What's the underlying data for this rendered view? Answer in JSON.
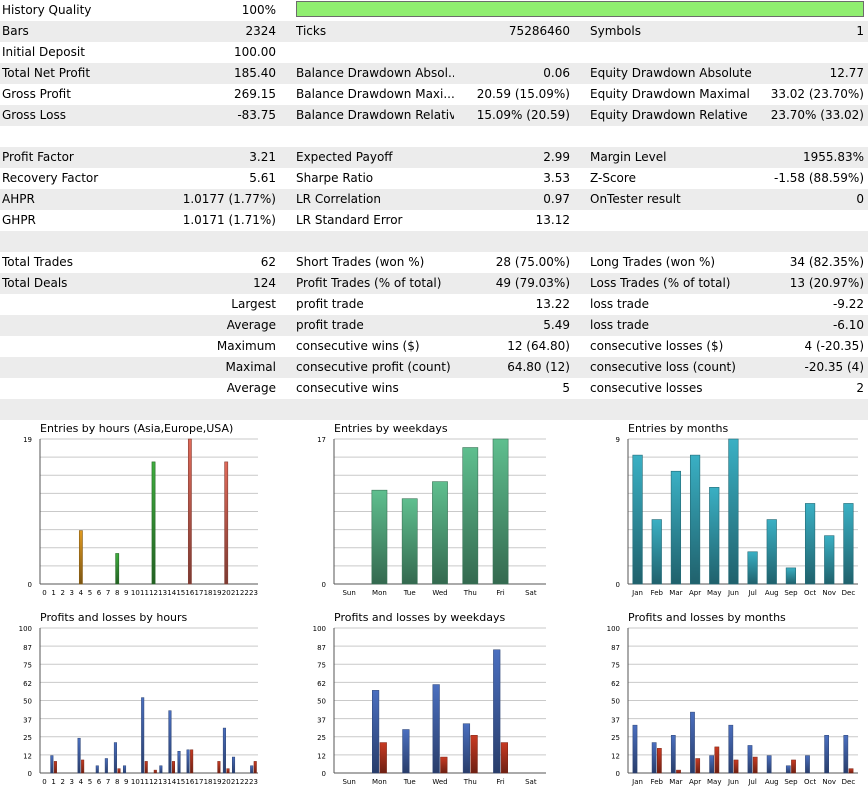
{
  "summary": {
    "history_quality": {
      "label": "History Quality",
      "value": "100%",
      "percent": 100
    },
    "rows": [
      {
        "c1": "Bars",
        "v1": "2324",
        "c2": "Ticks",
        "v2": "75286460",
        "c3": "Symbols",
        "v3": "1"
      },
      {
        "c1": "Initial Deposit",
        "v1": "100.00",
        "c2": "",
        "v2": "",
        "c3": "",
        "v3": ""
      },
      {
        "c1": "Total Net Profit",
        "v1": "185.40",
        "c2": "Balance Drawdown Absol...",
        "v2": "0.06",
        "c3": "Equity Drawdown Absolute",
        "v3": "12.77"
      },
      {
        "c1": "Gross Profit",
        "v1": "269.15",
        "c2": "Balance Drawdown Maxi...",
        "v2": "20.59 (15.09%)",
        "c3": "Equity Drawdown Maximal",
        "v3": "33.02 (23.70%)"
      },
      {
        "c1": "Gross Loss",
        "v1": "-83.75",
        "c2": "Balance Drawdown Relative",
        "v2": "15.09% (20.59)",
        "c3": "Equity Drawdown Relative",
        "v3": "23.70% (33.02)"
      },
      {
        "c1": "",
        "v1": "",
        "c2": "",
        "v2": "",
        "c3": "",
        "v3": ""
      },
      {
        "c1": "Profit Factor",
        "v1": "3.21",
        "c2": "Expected Payoff",
        "v2": "2.99",
        "c3": "Margin Level",
        "v3": "1955.83%"
      },
      {
        "c1": "Recovery Factor",
        "v1": "5.61",
        "c2": "Sharpe Ratio",
        "v2": "3.53",
        "c3": "Z-Score",
        "v3": "-1.58 (88.59%)"
      },
      {
        "c1": "AHPR",
        "v1": "1.0177 (1.77%)",
        "c2": "LR Correlation",
        "v2": "0.97",
        "c3": "OnTester result",
        "v3": "0"
      },
      {
        "c1": "GHPR",
        "v1": "1.0171 (1.71%)",
        "c2": "LR Standard Error",
        "v2": "13.12",
        "c3": "",
        "v3": ""
      },
      {
        "c1": "",
        "v1": "",
        "c2": "",
        "v2": "",
        "c3": "",
        "v3": ""
      },
      {
        "c1": "Total Trades",
        "v1": "62",
        "c2": "Short Trades (won %)",
        "v2": "28 (75.00%)",
        "c3": "Long Trades (won %)",
        "v3": "34 (82.35%)"
      },
      {
        "c1": "Total Deals",
        "v1": "124",
        "c2": "Profit Trades (% of total)",
        "v2": "49 (79.03%)",
        "c3": "Loss Trades (% of total)",
        "v3": "13 (20.97%)"
      },
      {
        "label": "Largest",
        "c2": "profit trade",
        "v2": "13.22",
        "c3": "loss trade",
        "v3": "-9.22"
      },
      {
        "label": "Average",
        "c2": "profit trade",
        "v2": "5.49",
        "c3": "loss trade",
        "v3": "-6.10"
      },
      {
        "label": "Maximum",
        "c2": "consecutive wins ($)",
        "v2": "12 (64.80)",
        "c3": "consecutive losses ($)",
        "v3": "4 (-20.35)"
      },
      {
        "label": "Maximal",
        "c2": "consecutive profit (count)",
        "v2": "64.80 (12)",
        "c3": "consecutive loss (count)",
        "v3": "-20.35 (4)"
      },
      {
        "label": "Average",
        "c2": "consecutive wins",
        "v2": "5",
        "c3": "consecutive losses",
        "v3": "2"
      },
      {
        "c1": "",
        "v1": "",
        "c2": "",
        "v2": "",
        "c3": "",
        "v3": ""
      }
    ]
  },
  "colors": {
    "asia": "#e09a20",
    "europe": "#3fae3f",
    "usa": "#e06a5a",
    "weekday": "#5fbf8f",
    "month": "#3ab0c4",
    "profit": "#4a6fc0",
    "loss": "#c83a22"
  },
  "chart_data": [
    {
      "type": "bar",
      "title": "Entries by hours (Asia,Europe,USA)",
      "categories": [
        "0",
        "1",
        "2",
        "3",
        "4",
        "5",
        "6",
        "7",
        "8",
        "9",
        "10",
        "11",
        "12",
        "13",
        "14",
        "15",
        "16",
        "17",
        "18",
        "19",
        "20",
        "21",
        "22",
        "23"
      ],
      "values": [
        0,
        0,
        0,
        0,
        7,
        0,
        0,
        0,
        4,
        0,
        0,
        0,
        16,
        0,
        0,
        0,
        19,
        0,
        0,
        0,
        16,
        0,
        0,
        0
      ],
      "bar_colors": [
        "usa",
        "usa",
        "usa",
        "usa",
        "asia",
        "asia",
        "asia",
        "asia",
        "europe",
        "europe",
        "europe",
        "europe",
        "europe",
        "europe",
        "europe",
        "usa",
        "usa",
        "usa",
        "usa",
        "usa",
        "usa",
        "usa",
        "usa",
        "usa"
      ],
      "ylim": [
        0,
        19
      ],
      "ytick_labels": [
        "0",
        "19"
      ],
      "grid": true
    },
    {
      "type": "bar",
      "title": "Entries by weekdays",
      "categories": [
        "Sun",
        "Mon",
        "Tue",
        "Wed",
        "Thu",
        "Fri",
        "Sat"
      ],
      "values": [
        0,
        11,
        10,
        12,
        16,
        17,
        0
      ],
      "ylim": [
        0,
        17
      ],
      "ytick_labels": [
        "0",
        "17"
      ],
      "grid": true
    },
    {
      "type": "bar",
      "title": "Entries by months",
      "categories": [
        "Jan",
        "Feb",
        "Mar",
        "Apr",
        "May",
        "Jun",
        "Jul",
        "Aug",
        "Sep",
        "Oct",
        "Nov",
        "Dec"
      ],
      "values": [
        8,
        4,
        7,
        8,
        6,
        9,
        2,
        4,
        1,
        5,
        3,
        5
      ],
      "ylim": [
        0,
        9
      ],
      "ytick_labels": [
        "0",
        "9"
      ],
      "grid": true
    },
    {
      "type": "bar",
      "title": "Profits and losses by hours",
      "categories": [
        "0",
        "1",
        "2",
        "3",
        "4",
        "5",
        "6",
        "7",
        "8",
        "9",
        "10",
        "11",
        "12",
        "13",
        "14",
        "15",
        "16",
        "17",
        "18",
        "19",
        "20",
        "21",
        "22",
        "23"
      ],
      "series": [
        {
          "values": [
            0,
            12,
            0,
            0,
            24,
            0,
            5,
            10,
            21,
            5,
            0,
            52,
            0,
            5,
            43,
            15,
            16,
            0,
            0,
            0,
            31,
            11,
            0,
            5
          ]
        },
        {
          "values": [
            0,
            8,
            0,
            0,
            9,
            0,
            0,
            0,
            3,
            0,
            0,
            8,
            2,
            0,
            8,
            0,
            16,
            0,
            0,
            8,
            3,
            0,
            0,
            8
          ]
        }
      ],
      "ylim": [
        0,
        100
      ],
      "ytick_labels": [
        "0",
        "12",
        "25",
        "37",
        "50",
        "62",
        "75",
        "87",
        "100"
      ],
      "grid": true
    },
    {
      "type": "bar",
      "title": "Profits and losses by weekdays",
      "categories": [
        "Sun",
        "Mon",
        "Tue",
        "Wed",
        "Thu",
        "Fri",
        "Sat"
      ],
      "series": [
        {
          "values": [
            0,
            57,
            30,
            61,
            34,
            85,
            0
          ]
        },
        {
          "values": [
            0,
            21,
            0,
            11,
            26,
            21,
            0
          ]
        }
      ],
      "ylim": [
        0,
        100
      ],
      "ytick_labels": [
        "0",
        "12",
        "25",
        "37",
        "50",
        "62",
        "75",
        "87",
        "100"
      ],
      "grid": true
    },
    {
      "type": "bar",
      "title": "Profits and losses by months",
      "categories": [
        "Jan",
        "Feb",
        "Mar",
        "Apr",
        "May",
        "Jun",
        "Jul",
        "Aug",
        "Sep",
        "Oct",
        "Nov",
        "Dec"
      ],
      "series": [
        {
          "values": [
            33,
            21,
            26,
            42,
            12,
            33,
            19,
            12,
            5,
            12,
            26,
            26
          ]
        },
        {
          "values": [
            0,
            17,
            2,
            10,
            18,
            9,
            11,
            0,
            9,
            0,
            0,
            3
          ]
        }
      ],
      "ylim": [
        0,
        100
      ],
      "ytick_labels": [
        "0",
        "12",
        "25",
        "37",
        "50",
        "62",
        "75",
        "87",
        "100"
      ],
      "grid": true
    }
  ]
}
